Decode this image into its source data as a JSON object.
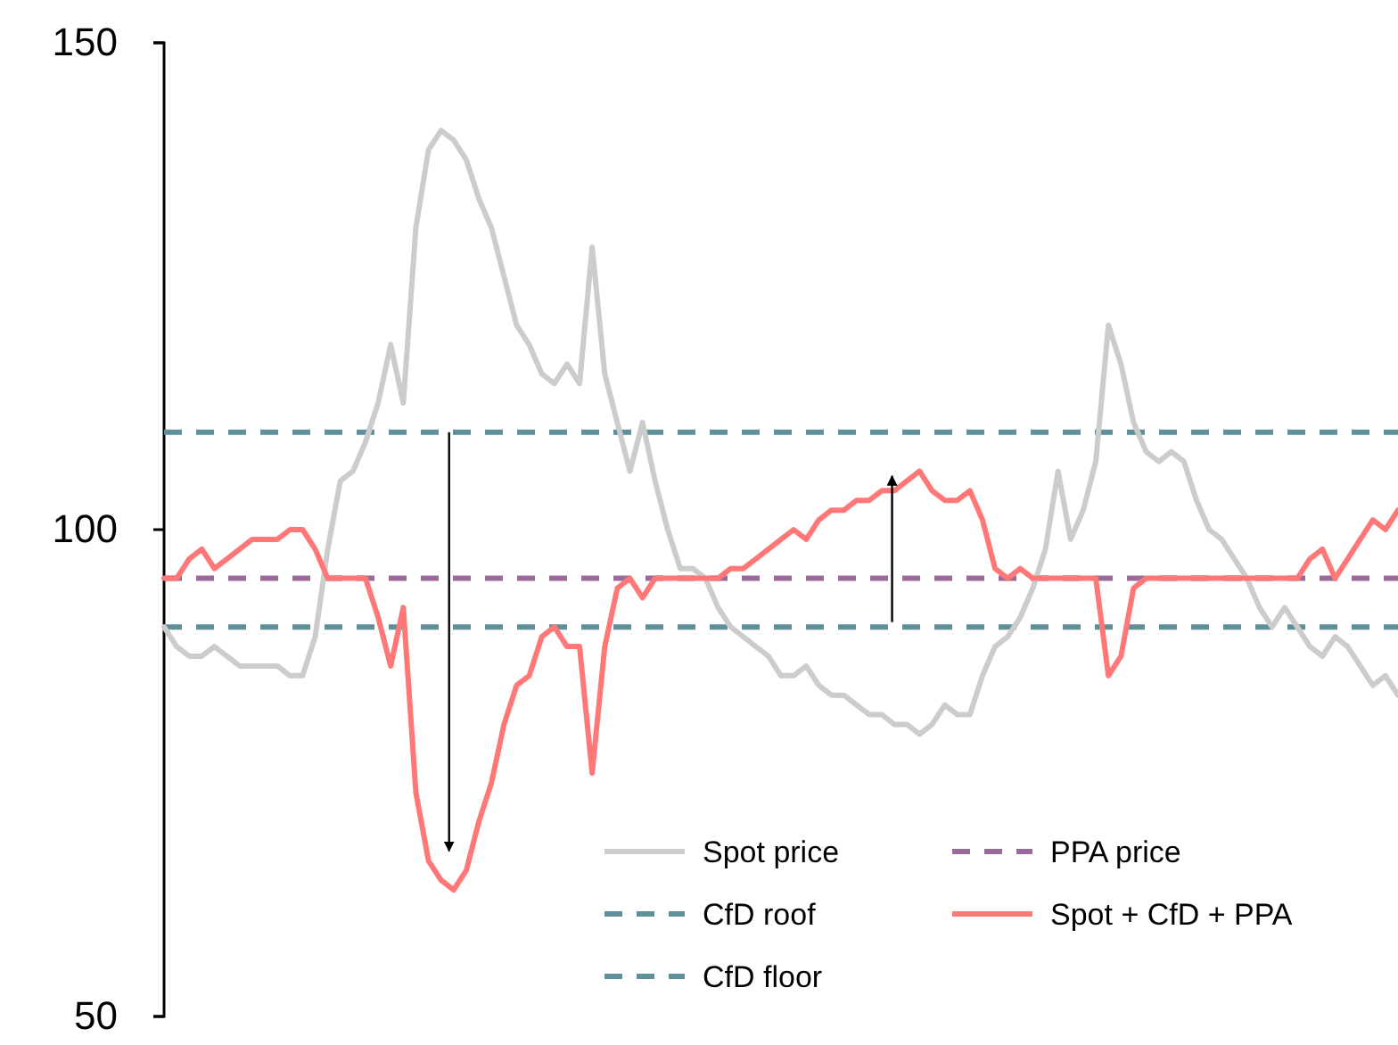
{
  "chart_data": {
    "type": "line",
    "categories": [
      null,
      null,
      null,
      null,
      null,
      null,
      null,
      null,
      null,
      null,
      null,
      null,
      null,
      null,
      null,
      null,
      null,
      null,
      null,
      null,
      null,
      null,
      null,
      null,
      null,
      null,
      null,
      null,
      null,
      null,
      null,
      null,
      null,
      null,
      null,
      null,
      null,
      null,
      null,
      null,
      null,
      null,
      null,
      null,
      null,
      null,
      null,
      null,
      null,
      null,
      null,
      null,
      null,
      null,
      null,
      null,
      null,
      null,
      null,
      null,
      null,
      null,
      null,
      null,
      null,
      null,
      null,
      null,
      null,
      null,
      null,
      null,
      null,
      null,
      null,
      null,
      null,
      null,
      null,
      null,
      null,
      null,
      null,
      null,
      null,
      null,
      null,
      null,
      null,
      null,
      null,
      null,
      null,
      null,
      null,
      null,
      null,
      null,
      null
    ],
    "series": [
      {
        "name": "Spot price",
        "color": "#cccccc",
        "values": [
          90,
          88,
          87,
          87,
          88,
          87,
          86,
          86,
          86,
          86,
          85,
          85,
          89,
          98,
          105,
          106,
          109,
          113,
          119,
          113,
          131,
          139,
          141,
          140,
          138,
          134,
          131,
          126,
          121,
          119,
          116,
          115,
          117,
          115,
          129,
          116,
          111,
          106,
          111,
          105,
          100,
          96,
          96,
          95,
          92,
          90,
          89,
          88,
          87,
          85,
          85,
          86,
          84,
          83,
          83,
          82,
          81,
          81,
          80,
          80,
          79,
          80,
          82,
          81,
          81,
          85,
          88,
          89,
          91,
          94,
          98,
          106,
          99,
          102,
          107,
          121,
          117,
          111,
          108,
          107,
          108,
          107,
          103,
          100,
          99,
          97,
          95,
          92,
          90,
          92,
          90,
          88,
          87,
          89,
          88,
          86,
          84,
          85,
          83
        ]
      },
      {
        "name": "Spot + CfD + PPA",
        "color": "#ff7777",
        "values": [
          95,
          95,
          97,
          98,
          96,
          97,
          98,
          99,
          99,
          99,
          100,
          100,
          98,
          95,
          95,
          95,
          95,
          91,
          86,
          92,
          73,
          66,
          64,
          63,
          65,
          70,
          74,
          80,
          84,
          85,
          89,
          90,
          88,
          88,
          75,
          88,
          94,
          95,
          93,
          95,
          95,
          95,
          95,
          95,
          95,
          96,
          96,
          97,
          98,
          99,
          100,
          99,
          101,
          102,
          102,
          103,
          103,
          104,
          104,
          105,
          106,
          104,
          103,
          103,
          104,
          101,
          96,
          95,
          96,
          95,
          95,
          95,
          95,
          95,
          95,
          85,
          87,
          94,
          95,
          95,
          95,
          95,
          95,
          95,
          95,
          95,
          95,
          95,
          95,
          95,
          95,
          97,
          98,
          95,
          97,
          99,
          101,
          100,
          102
        ]
      }
    ],
    "ref_lines": [
      {
        "axis": "y",
        "value": 110,
        "label": "CfD roof",
        "color": "#5f8f99",
        "line_style": "dashed"
      },
      {
        "axis": "y",
        "value": 90,
        "label": "CfD floor",
        "color": "#5f8f99",
        "line_style": "dashed"
      },
      {
        "axis": "y",
        "value": 95,
        "label": "PPA price",
        "color": "#9a6a9a",
        "line_style": "dashed"
      }
    ],
    "ylim": [
      50,
      150
    ],
    "yticks": [
      50,
      100,
      150
    ],
    "tick_labels": "y",
    "grid": false,
    "legend": "bottom right",
    "line_style": "solid"
  }
}
